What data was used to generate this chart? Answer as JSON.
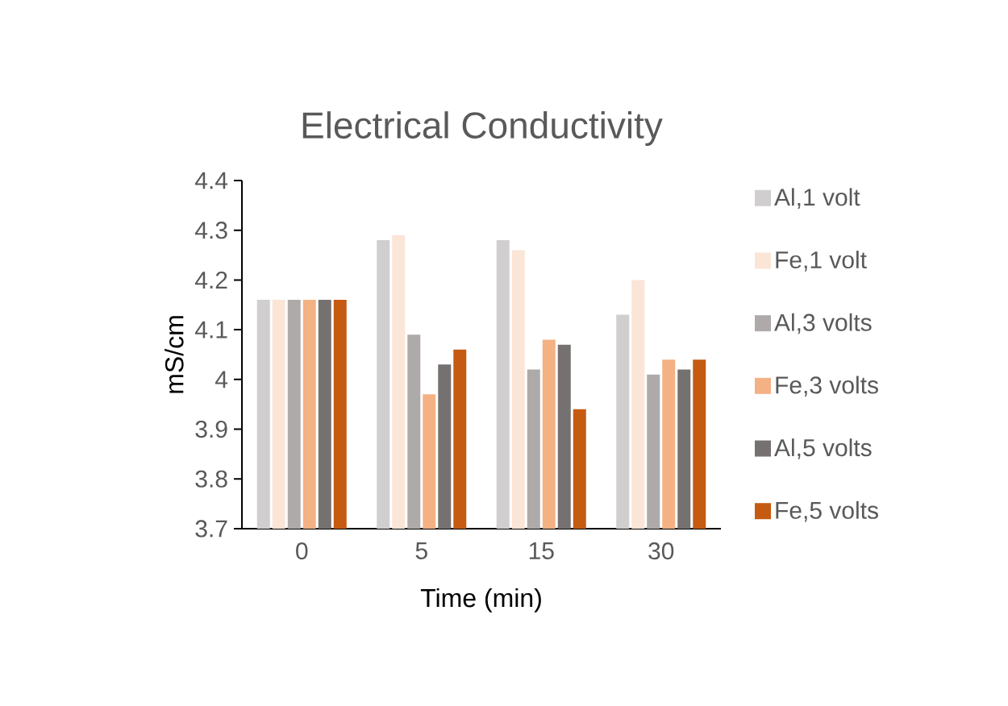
{
  "chart_data": {
    "type": "bar",
    "title": "Electrical Conductivity",
    "xlabel": "Time (min)",
    "ylabel": "mS/cm",
    "categories": [
      "0",
      "5",
      "15",
      "30"
    ],
    "series": [
      {
        "name": "Al,1 volt",
        "color": "#d0cece",
        "values": [
          4.16,
          4.28,
          4.28,
          4.13
        ]
      },
      {
        "name": "Fe,1 volt",
        "color": "#fbe5d6",
        "values": [
          4.16,
          4.29,
          4.26,
          4.2
        ]
      },
      {
        "name": "Al,3 volts",
        "color": "#aeaaaa",
        "values": [
          4.16,
          4.09,
          4.02,
          4.01
        ]
      },
      {
        "name": "Fe,3 volts",
        "color": "#f4b183",
        "values": [
          4.16,
          3.97,
          4.08,
          4.04
        ]
      },
      {
        "name": "Al,5 volts",
        "color": "#767171",
        "values": [
          4.16,
          4.03,
          4.07,
          4.02
        ]
      },
      {
        "name": "Fe,5 volts",
        "color": "#c55a11",
        "values": [
          4.16,
          4.06,
          3.94,
          4.04
        ]
      }
    ],
    "ylim": [
      3.7,
      4.4
    ],
    "yticks": [
      3.7,
      3.8,
      3.9,
      4,
      4.1,
      4.2,
      4.3,
      4.4
    ],
    "legend": "right"
  }
}
